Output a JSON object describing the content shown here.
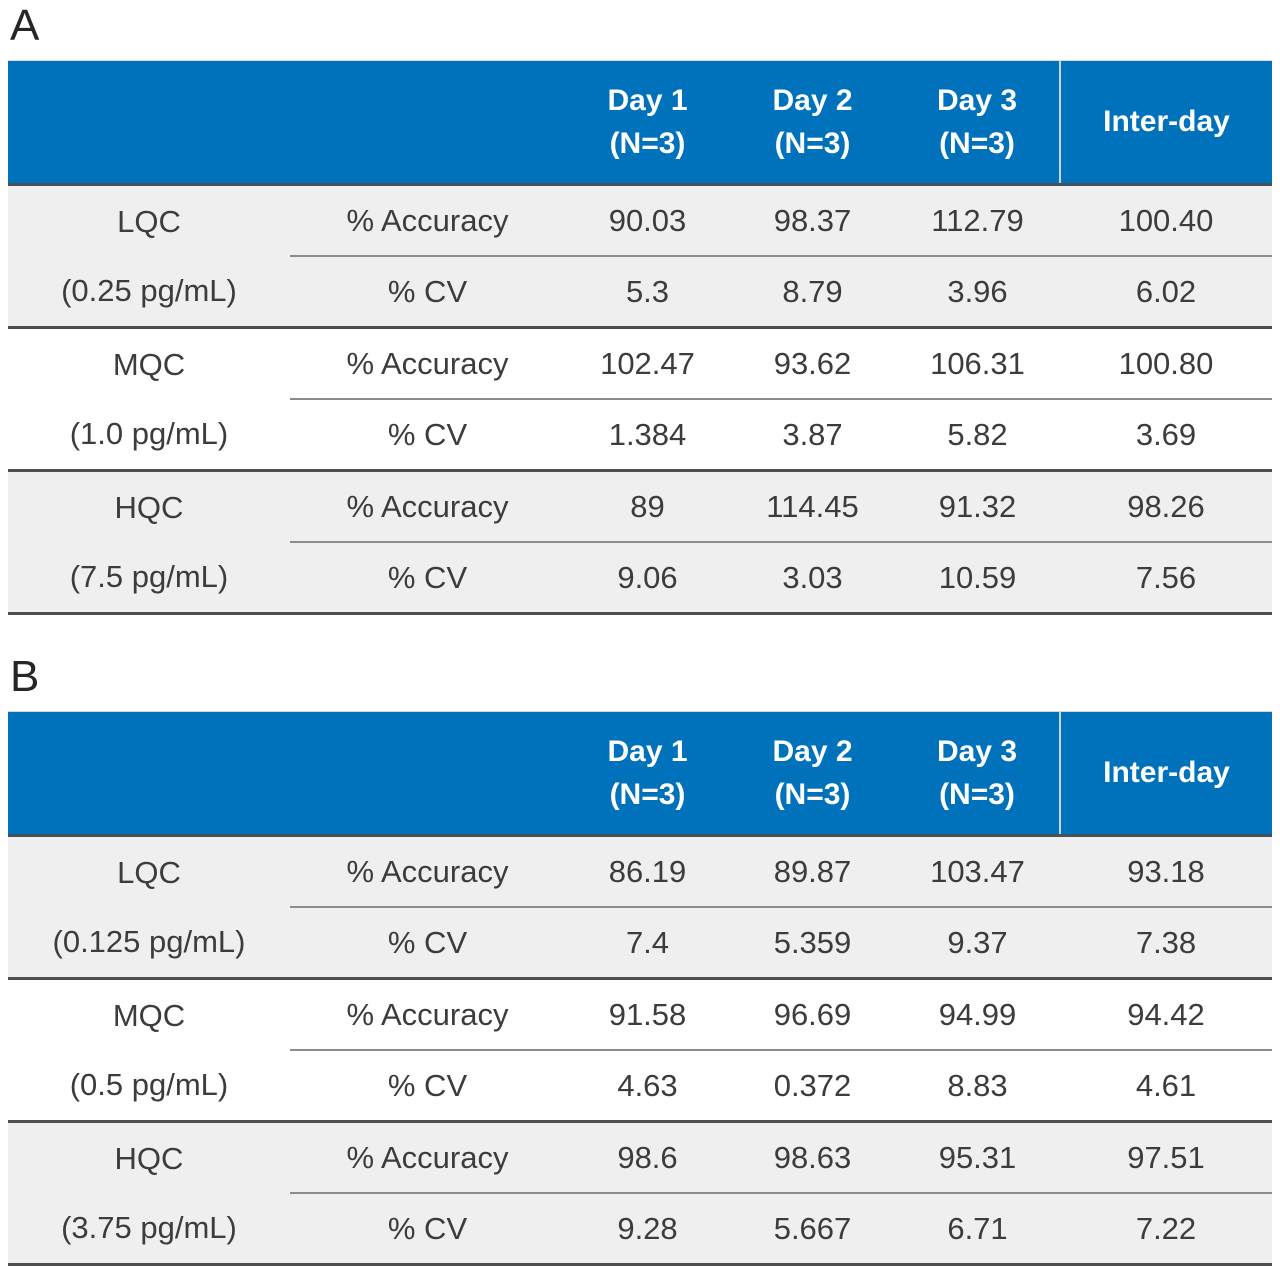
{
  "colors": {
    "header_bg": "#0072bc",
    "header_text": "#ffffff",
    "shaded_row": "#efefef",
    "white_row": "#ffffff",
    "body_text": "#3c3c3c",
    "border_dark": "#4f4f4f",
    "border_thin": "#8c8c8c"
  },
  "panels": [
    {
      "label": "A",
      "columns": [
        {
          "line1": "Day 1",
          "line2": "(N=3)"
        },
        {
          "line1": "Day 2",
          "line2": "(N=3)"
        },
        {
          "line1": "Day 3",
          "line2": "(N=3)"
        },
        {
          "line1": "Inter-day",
          "line2": ""
        }
      ],
      "groups": [
        {
          "name": "LQC",
          "concentration": "(0.25 pg/mL)",
          "accuracy": {
            "metric": "% Accuracy",
            "values": [
              "90.03",
              "98.37",
              "112.79",
              "100.40"
            ]
          },
          "cv": {
            "metric": "% CV",
            "values": [
              "5.3",
              "8.79",
              "3.96",
              "6.02"
            ]
          }
        },
        {
          "name": "MQC",
          "concentration": "(1.0 pg/mL)",
          "accuracy": {
            "metric": "% Accuracy",
            "values": [
              "102.47",
              "93.62",
              "106.31",
              "100.80"
            ]
          },
          "cv": {
            "metric": "% CV",
            "values": [
              "1.384",
              "3.87",
              "5.82",
              "3.69"
            ]
          }
        },
        {
          "name": "HQC",
          "concentration": "(7.5 pg/mL)",
          "accuracy": {
            "metric": "% Accuracy",
            "values": [
              "89",
              "114.45",
              "91.32",
              "98.26"
            ]
          },
          "cv": {
            "metric": "% CV",
            "values": [
              "9.06",
              "3.03",
              "10.59",
              "7.56"
            ]
          }
        }
      ]
    },
    {
      "label": "B",
      "columns": [
        {
          "line1": "Day 1",
          "line2": "(N=3)"
        },
        {
          "line1": "Day 2",
          "line2": "(N=3)"
        },
        {
          "line1": "Day 3",
          "line2": "(N=3)"
        },
        {
          "line1": "Inter-day",
          "line2": ""
        }
      ],
      "groups": [
        {
          "name": "LQC",
          "concentration": "(0.125 pg/mL)",
          "accuracy": {
            "metric": "% Accuracy",
            "values": [
              "86.19",
              "89.87",
              "103.47",
              "93.18"
            ]
          },
          "cv": {
            "metric": "% CV",
            "values": [
              "7.4",
              "5.359",
              "9.37",
              "7.38"
            ]
          }
        },
        {
          "name": "MQC",
          "concentration": "(0.5 pg/mL)",
          "accuracy": {
            "metric": "% Accuracy",
            "values": [
              "91.58",
              "96.69",
              "94.99",
              "94.42"
            ]
          },
          "cv": {
            "metric": "% CV",
            "values": [
              "4.63",
              "0.372",
              "8.83",
              "4.61"
            ]
          }
        },
        {
          "name": "HQC",
          "concentration": "(3.75 pg/mL)",
          "accuracy": {
            "metric": "% Accuracy",
            "values": [
              "98.6",
              "98.63",
              "95.31",
              "97.51"
            ]
          },
          "cv": {
            "metric": "% CV",
            "values": [
              "9.28",
              "5.667",
              "6.71",
              "7.22"
            ]
          }
        }
      ]
    }
  ]
}
